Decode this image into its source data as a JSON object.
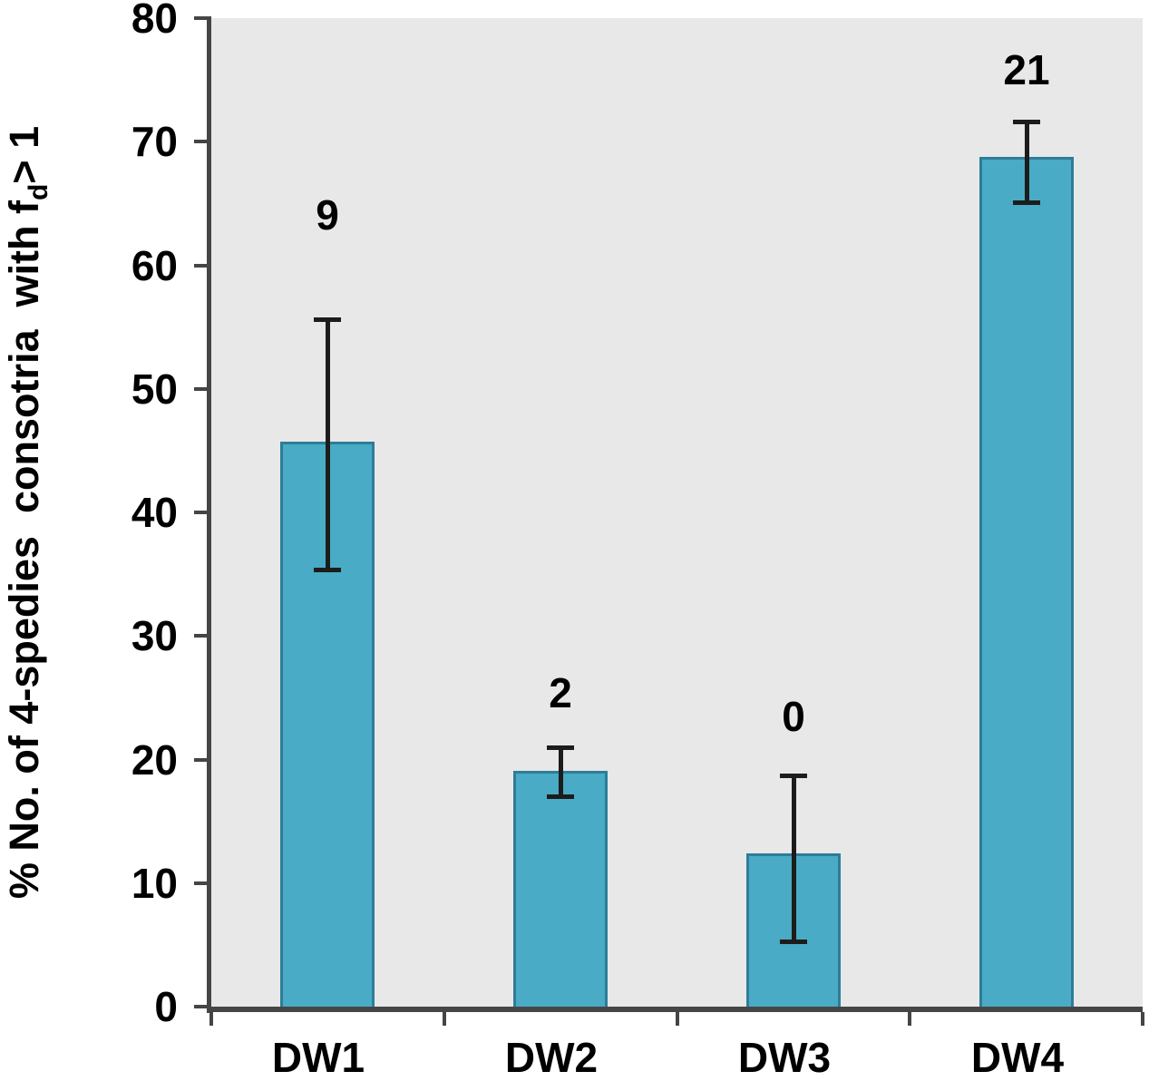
{
  "figure": {
    "background": "#FFFFFF"
  },
  "chart_data": {
    "type": "bar",
    "title": "",
    "xlabel": "",
    "ylabel": "% No. of 4-spedies  consotria  with fd> 1",
    "ylabel_parts": {
      "prefix": "% No. of 4-spedies  consotria  with f",
      "sub": "d",
      "suffix": "> 1"
    },
    "categories": [
      "DW1",
      "DW2",
      "DW3",
      "DW4"
    ],
    "values": [
      45.7,
      19.1,
      12.4,
      68.8
    ],
    "error_low": [
      35.4,
      17.0,
      5.3,
      65.1
    ],
    "error_high": [
      55.6,
      21.0,
      18.7,
      71.6
    ],
    "bar_labels": [
      "9",
      "2",
      "0",
      "21"
    ],
    "bar_label_y": [
      64.1,
      25.4,
      23.5,
      75.8
    ],
    "ylim": [
      0,
      80
    ],
    "ytick_step": 10,
    "yticks": [
      0,
      10,
      20,
      30,
      40,
      50,
      60,
      70,
      80
    ],
    "grid": false,
    "legend": null,
    "colors": {
      "plot_bg": "#E8E8E8",
      "bar_fill": "#49ABC5",
      "bar_border": "#2E7D98",
      "axis": "#454545",
      "error_bar": "#1C1C1C",
      "text": "#000000"
    }
  }
}
